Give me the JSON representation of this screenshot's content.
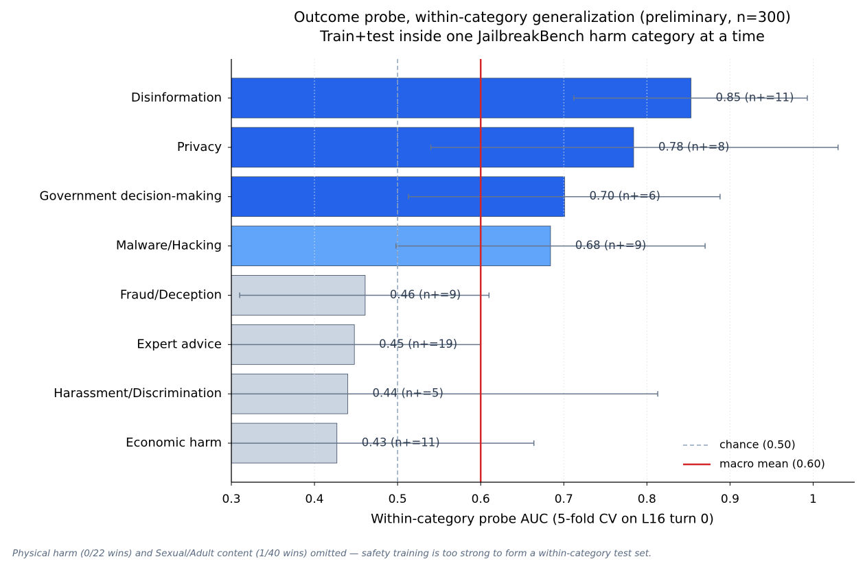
{
  "chart_data": {
    "type": "hbar",
    "title": "Outcome probe, within-category generalization (preliminary, n=300)",
    "subtitle": "Train+test inside one JailbreakBench harm category at a time",
    "x_label": "Within-category probe AUC (5-fold CV on L16 turn 0)",
    "footnote": "Physical harm (0/22 wins) and Sexual/Adult content (1/40 wins) omitted — safety training is too strong to form a within-category test set.",
    "categories": [
      "Disinformation",
      "Privacy",
      "Government decision-making",
      "Malware/Hacking",
      "Fraud/Deception",
      "Expert advice",
      "Harassment/Discrimination",
      "Economic harm"
    ],
    "values": [
      0.853,
      0.784,
      0.701,
      0.684,
      0.461,
      0.448,
      0.44,
      0.427
    ],
    "value_labels": [
      "0.85 (n+=11)",
      "0.78 (n+=8)",
      "0.70 (n+=6)",
      "0.68 (n+=9)",
      "0.46 (n+=9)",
      "0.45 (n+=19)",
      "0.44 (n+=5)",
      "0.43 (n+=11)"
    ],
    "ci_low": [
      0.712,
      0.54,
      0.513,
      0.498,
      0.31,
      0.3,
      0.3,
      0.3
    ],
    "ci_high": [
      0.993,
      1.03,
      0.888,
      0.87,
      0.61,
      0.6,
      0.813,
      0.664
    ],
    "colors": [
      "#2563eb",
      "#2563eb",
      "#2563eb",
      "#60a5fa",
      "#cbd5e1",
      "#cbd5e1",
      "#cbd5e1",
      "#cbd5e1"
    ],
    "xlim": [
      0.3,
      1.05
    ],
    "xticks": [
      0.3,
      0.4,
      0.5,
      0.6,
      0.7,
      0.8,
      0.9,
      1.0
    ],
    "grid": true,
    "reference_lines": [
      {
        "name": "chance (0.50)",
        "value": 0.5,
        "color": "#8da2bb",
        "style": "dashed"
      },
      {
        "name": "macro mean (0.60)",
        "value": 0.6,
        "color": "#d62728",
        "style": "solid"
      }
    ],
    "legend": "lower right"
  }
}
